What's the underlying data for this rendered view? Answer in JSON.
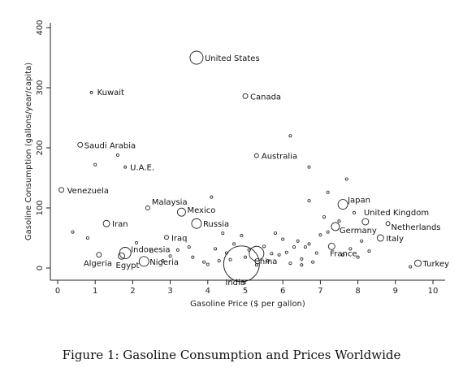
{
  "caption": "Figure 1: Gasoline Consumption and Prices Worldwide",
  "chart_data": {
    "type": "scatter",
    "title": "",
    "xlabel": "Gasoline Price ($ per gallon)",
    "ylabel": "Gasoline Consumption (gallons/year/capita)",
    "xlim": [
      0,
      10
    ],
    "ylim": [
      0,
      400
    ],
    "xticks": [
      0,
      1,
      2,
      3,
      4,
      5,
      6,
      7,
      8,
      9,
      10
    ],
    "yticks": [
      0,
      100,
      200,
      300,
      400
    ],
    "grid": false,
    "marker": "hollow circle, size proportional to country consumption",
    "labeled_points": [
      {
        "label": "United States",
        "x": 3.7,
        "y": 350,
        "size": 8
      },
      {
        "label": "Canada",
        "x": 5.0,
        "y": 286,
        "size": 3
      },
      {
        "label": "Kuwait",
        "x": 0.9,
        "y": 292,
        "size": 1.5
      },
      {
        "label": "Saudi Arabia",
        "x": 0.6,
        "y": 205,
        "size": 3
      },
      {
        "label": "U.A.E.",
        "x": 1.8,
        "y": 168,
        "size": 1.5
      },
      {
        "label": "Australia",
        "x": 5.3,
        "y": 187,
        "size": 2.5
      },
      {
        "label": "Venezuela",
        "x": 0.1,
        "y": 130,
        "size": 3
      },
      {
        "label": "Malaysia",
        "x": 2.4,
        "y": 100,
        "size": 2.5
      },
      {
        "label": "Japan",
        "x": 7.6,
        "y": 106,
        "size": 6
      },
      {
        "label": "Mexico",
        "x": 3.3,
        "y": 93,
        "size": 5
      },
      {
        "label": "Iran",
        "x": 1.3,
        "y": 74,
        "size": 4
      },
      {
        "label": "Russia",
        "x": 3.7,
        "y": 74,
        "size": 6
      },
      {
        "label": "United Kingdom",
        "x": 8.2,
        "y": 77,
        "size": 4
      },
      {
        "label": "Netherlands",
        "x": 8.8,
        "y": 74,
        "size": 2.5
      },
      {
        "label": "Germany",
        "x": 7.4,
        "y": 69,
        "size": 5
      },
      {
        "label": "Iraq",
        "x": 2.9,
        "y": 51,
        "size": 2.5
      },
      {
        "label": "Italy",
        "x": 8.6,
        "y": 50,
        "size": 4
      },
      {
        "label": "Indonesia",
        "x": 1.8,
        "y": 25,
        "size": 7
      },
      {
        "label": "France",
        "x": 7.3,
        "y": 36,
        "size": 4
      },
      {
        "label": "Algeria",
        "x": 1.1,
        "y": 22,
        "size": 3
      },
      {
        "label": "Egypt",
        "x": 1.7,
        "y": 20,
        "size": 4
      },
      {
        "label": "Nigeria",
        "x": 2.3,
        "y": 11,
        "size": 6
      },
      {
        "label": "China",
        "x": 5.3,
        "y": 24,
        "size": 9
      },
      {
        "label": "India",
        "x": 4.9,
        "y": 7,
        "size": 22
      },
      {
        "label": "Turkey",
        "x": 9.6,
        "y": 8,
        "size": 4
      }
    ],
    "unlabeled_points": [
      {
        "x": 1.0,
        "y": 172
      },
      {
        "x": 1.6,
        "y": 188
      },
      {
        "x": 6.2,
        "y": 220
      },
      {
        "x": 6.7,
        "y": 168
      },
      {
        "x": 7.7,
        "y": 148
      },
      {
        "x": 4.1,
        "y": 118
      },
      {
        "x": 6.7,
        "y": 112
      },
      {
        "x": 7.2,
        "y": 126
      },
      {
        "x": 7.1,
        "y": 85
      },
      {
        "x": 7.9,
        "y": 92
      },
      {
        "x": 0.4,
        "y": 60
      },
      {
        "x": 0.8,
        "y": 50
      },
      {
        "x": 3.2,
        "y": 30
      },
      {
        "x": 3.6,
        "y": 18
      },
      {
        "x": 4.3,
        "y": 12
      },
      {
        "x": 4.5,
        "y": 25
      },
      {
        "x": 4.7,
        "y": 40
      },
      {
        "x": 4.9,
        "y": 54
      },
      {
        "x": 5.1,
        "y": 30
      },
      {
        "x": 5.5,
        "y": 36
      },
      {
        "x": 5.6,
        "y": 12
      },
      {
        "x": 5.9,
        "y": 22
      },
      {
        "x": 6.0,
        "y": 48
      },
      {
        "x": 6.2,
        "y": 8
      },
      {
        "x": 6.3,
        "y": 35
      },
      {
        "x": 6.5,
        "y": 15
      },
      {
        "x": 6.6,
        "y": 35
      },
      {
        "x": 6.7,
        "y": 40
      },
      {
        "x": 6.9,
        "y": 25
      },
      {
        "x": 7.0,
        "y": 55
      },
      {
        "x": 7.2,
        "y": 60
      },
      {
        "x": 7.5,
        "y": 78
      },
      {
        "x": 7.8,
        "y": 32
      },
      {
        "x": 8.0,
        "y": 18
      },
      {
        "x": 8.1,
        "y": 45
      },
      {
        "x": 9.4,
        "y": 2
      },
      {
        "x": 3.9,
        "y": 10
      },
      {
        "x": 4.0,
        "y": 6
      },
      {
        "x": 4.6,
        "y": 14
      },
      {
        "x": 5.3,
        "y": 5
      },
      {
        "x": 6.5,
        "y": 5
      },
      {
        "x": 2.8,
        "y": 12
      },
      {
        "x": 3.0,
        "y": 20
      },
      {
        "x": 3.5,
        "y": 35
      },
      {
        "x": 4.4,
        "y": 58
      },
      {
        "x": 5.8,
        "y": 58
      },
      {
        "x": 6.4,
        "y": 45
      },
      {
        "x": 2.1,
        "y": 42
      },
      {
        "x": 2.5,
        "y": 28
      },
      {
        "x": 5.7,
        "y": 24
      },
      {
        "x": 6.1,
        "y": 26
      },
      {
        "x": 6.8,
        "y": 10
      },
      {
        "x": 7.6,
        "y": 22
      },
      {
        "x": 8.3,
        "y": 28
      },
      {
        "x": 4.2,
        "y": 32
      },
      {
        "x": 5.0,
        "y": 18
      }
    ]
  }
}
